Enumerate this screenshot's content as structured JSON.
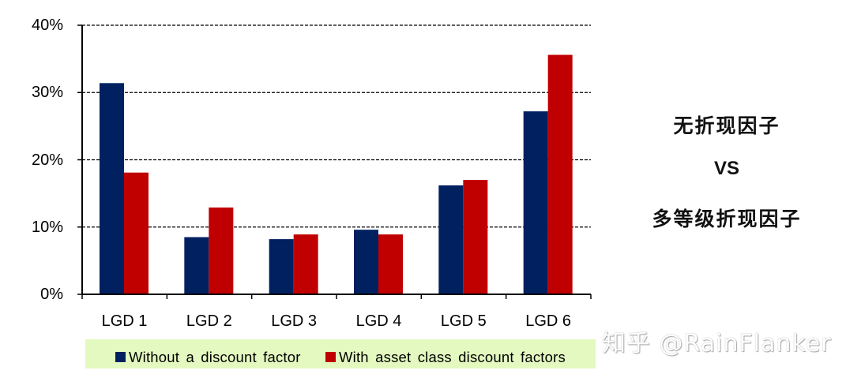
{
  "chart_data": {
    "type": "bar",
    "title": "",
    "xlabel": "",
    "ylabel": "",
    "categories": [
      "LGD 1",
      "LGD 2",
      "LGD 3",
      "LGD 4",
      "LGD 5",
      "LGD 6"
    ],
    "series": [
      {
        "name": "Without a discount factor",
        "color": "#002060",
        "values": [
          31.4,
          8.5,
          8.2,
          9.6,
          16.2,
          27.2
        ]
      },
      {
        "name": "With asset class discount factors",
        "color": "#c00000",
        "values": [
          18.1,
          12.9,
          8.9,
          8.9,
          17.0,
          35.6
        ]
      }
    ],
    "ylim": [
      0,
      40
    ],
    "yticks": [
      "0%",
      "10%",
      "20%",
      "30%",
      "40%"
    ],
    "grid": "horizontal dashed",
    "legend_position": "bottom"
  },
  "legend": {
    "items": [
      {
        "label": "Without a discount factor",
        "color": "#002060"
      },
      {
        "label": "With asset class discount factors",
        "color": "#c00000"
      }
    ],
    "background": "#e4f9c0"
  },
  "side_annotation": {
    "line1": "无折现因子",
    "line2": "VS",
    "line3": "多等级折现因子"
  },
  "watermark": "知乎 @RainFlanker"
}
